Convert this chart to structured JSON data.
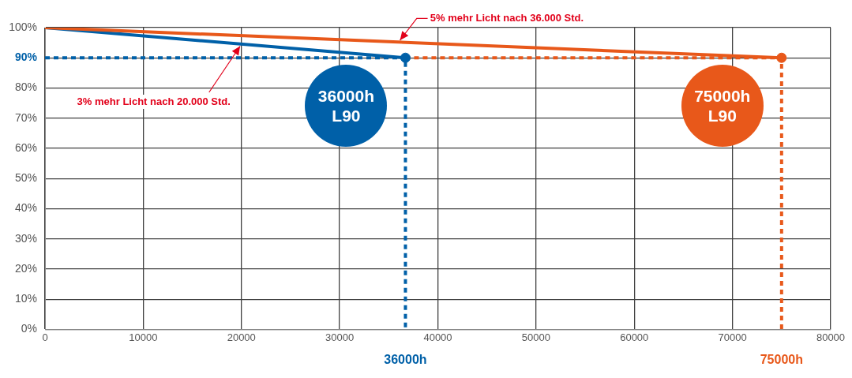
{
  "chart_data": {
    "type": "line",
    "xlim": [
      0,
      80000
    ],
    "xticks": [
      0,
      10000,
      20000,
      30000,
      40000,
      50000,
      60000,
      70000,
      80000
    ],
    "ylim": [
      0,
      100
    ],
    "yticks": [
      {
        "value": 0,
        "label": "0%"
      },
      {
        "value": 10,
        "label": "10%"
      },
      {
        "value": 20,
        "label": "20%"
      },
      {
        "value": 30,
        "label": "30%"
      },
      {
        "value": 40,
        "label": "40%"
      },
      {
        "value": 50,
        "label": "50%"
      },
      {
        "value": 60,
        "label": "60%"
      },
      {
        "value": 70,
        "label": "70%"
      },
      {
        "value": 80,
        "label": "80%"
      },
      {
        "value": 90,
        "label": "90%"
      },
      {
        "value": 100,
        "label": "100%"
      }
    ],
    "grid": true,
    "legend": false,
    "series": [
      {
        "color": "#0060a8",
        "x": [
          0,
          36700
        ],
        "values": [
          100,
          90
        ]
      },
      {
        "color": "#e8581a",
        "x": [
          0,
          75000
        ],
        "values": [
          100,
          90
        ]
      },
      {
        "type": "line",
        "color": "#0060a8",
        "line_style": "dashed",
        "x": [
          0,
          36700,
          36700
        ],
        "values": [
          90,
          90,
          0
        ]
      },
      {
        "type": "line",
        "color": "#e8581a",
        "line_style": "dashed",
        "x": [
          36700,
          75000,
          75000
        ],
        "values": [
          90,
          90,
          0
        ]
      },
      {
        "type": "scatter",
        "marker": "circle",
        "colors": [
          "#0060a8",
          "#e8581a"
        ],
        "x": [
          36700,
          75000
        ],
        "values": [
          90,
          90
        ]
      }
    ],
    "annotations": [
      {
        "text": "3% mehr Licht nach 20.000 Std.",
        "x": 20000,
        "y": 94.5
      },
      {
        "text": "5% mehr Licht nach 36.000 Std.",
        "x": 36000,
        "y": 95.2
      },
      "36000h\nL90",
      "75000h\nL90",
      "36000h",
      "75000h"
    ]
  }
}
